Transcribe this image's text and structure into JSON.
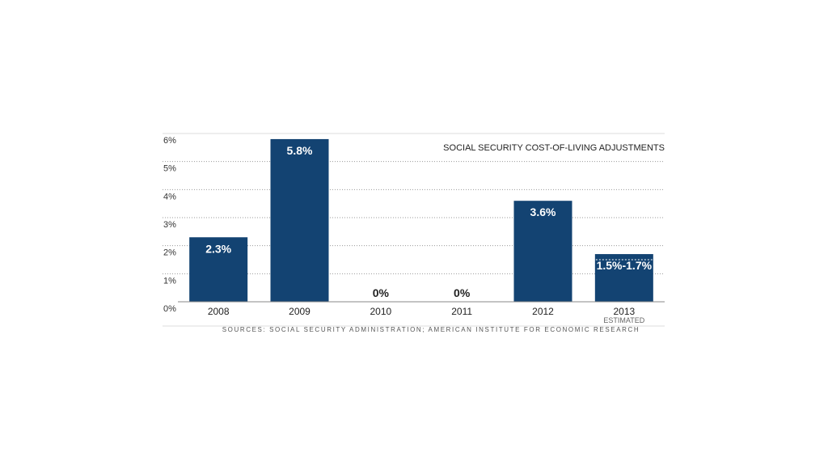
{
  "chart_data": {
    "type": "bar",
    "title": "SOCIAL SECURITY COST-OF-LIVING ADJUSTMENTS",
    "source": "SOURCES: SOCIAL SECURITY ADMINISTRATION; AMERICAN INSTITUTE FOR ECONOMIC RESEARCH",
    "categories": [
      "2008",
      "2009",
      "2010",
      "2011",
      "2012",
      "2013"
    ],
    "values": [
      2.3,
      5.8,
      0,
      0,
      3.6,
      1.7
    ],
    "estimated_low": [
      null,
      null,
      null,
      null,
      null,
      1.5
    ],
    "value_labels": [
      "2.3%",
      "5.8%",
      "0%",
      "0%",
      "3.6%",
      "1.5%-1.7%"
    ],
    "category_notes": [
      "",
      "",
      "",
      "",
      "",
      "ESTIMATED"
    ],
    "y_ticks": [
      "0%",
      "1%",
      "2%",
      "3%",
      "4%",
      "5%",
      "6%"
    ],
    "ylim": [
      0,
      6
    ],
    "xlabel": "",
    "ylabel": "",
    "grid": true,
    "colors": {
      "bar": "#134372",
      "estimate_line": "#ffffff",
      "grid": "#999999",
      "axis": "#888888"
    }
  }
}
